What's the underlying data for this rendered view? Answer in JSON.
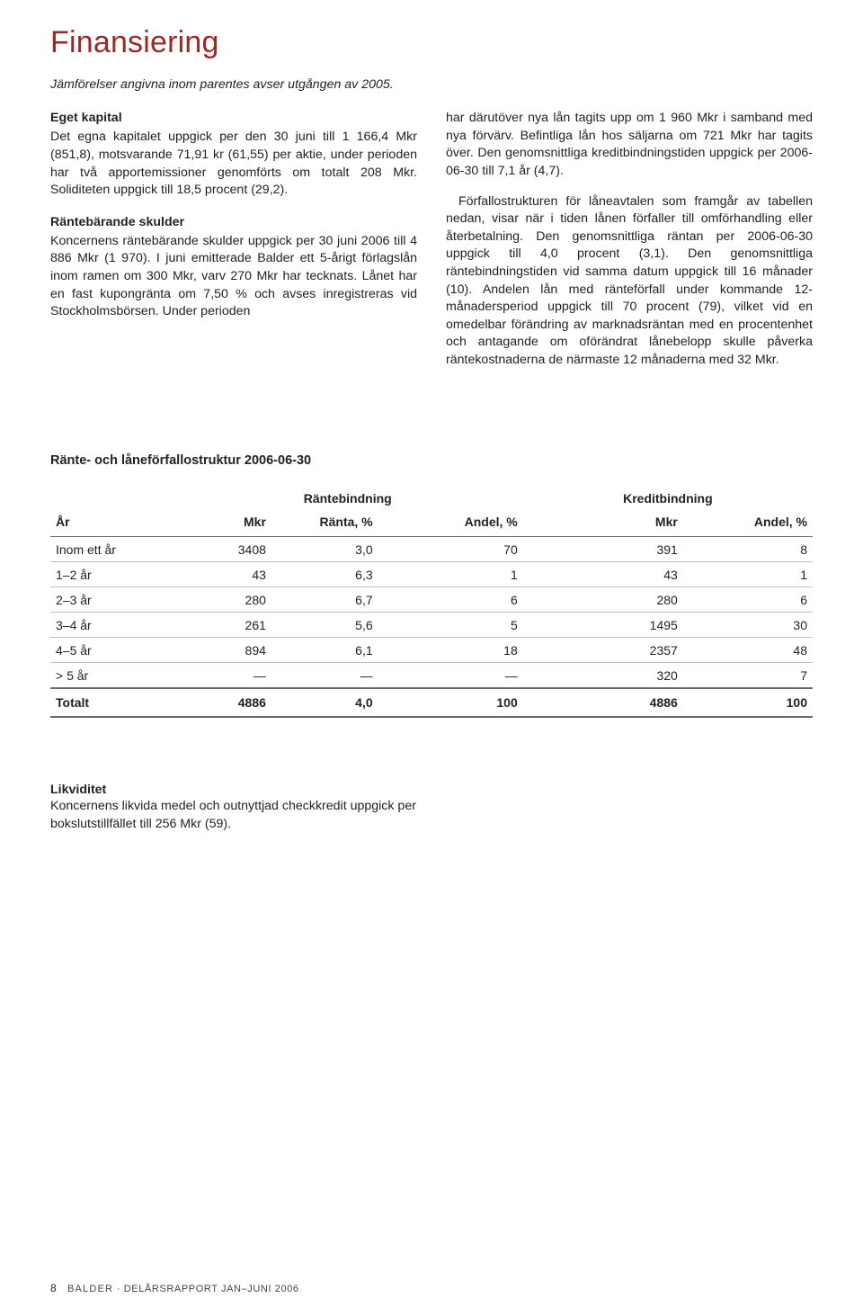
{
  "title": "Finansiering",
  "intro_italic": "Jämförelser angivna inom parentes avser utgången av 2005.",
  "left": {
    "s1_head": "Eget kapital",
    "s1_body": "Det egna kapitalet uppgick per den 30 juni till 1 166,4 Mkr (851,8), motsvarande 71,91 kr (61,55) per aktie, under perioden har två apportemissioner genomförts om totalt 208 Mkr. Soliditeten uppgick till 18,5 procent (29,2).",
    "s2_head": "Räntebärande skulder",
    "s2_body": "Koncernens räntebärande skulder uppgick per 30 juni 2006 till 4 886 Mkr (1 970). I juni emitterade Balder ett 5-årigt förlagslån inom ramen om 300 Mkr, varv 270 Mkr har tecknats. Lånet har en fast kupongränta om 7,50 % och avses inregistreras vid Stockholmsbörsen. Under perioden"
  },
  "right": {
    "p1": "har därutöver nya lån tagits upp om 1 960 Mkr i samband med nya förvärv. Befintliga lån hos säljarna om 721 Mkr har tagits över. Den genomsnittliga kreditbindningstiden uppgick per 2006-06-30 till 7,1 år (4,7).",
    "p2": "Förfallostrukturen för låneavtalen som framgår av tabellen nedan, visar när i tiden lånen förfaller till omförhandling eller återbetalning. Den genomsnittliga räntan per 2006-06-30 uppgick till 4,0 procent (3,1). Den genomsnittliga räntebindningstiden vid samma datum uppgick till 16 månader (10). Andelen lån med ränteförfall under kommande 12-månadersperiod uppgick till 70 procent (79), vilket vid en omedelbar förändring av marknadsräntan med en procentenhet och antagande om oförändrat lånebelopp skulle påverka räntekostnaderna de närmaste 12 månaderna med 32 Mkr."
  },
  "table": {
    "title": "Ränte- och låneförfallostruktur 2006-06-30",
    "group1": "Räntebindning",
    "group2": "Kreditbindning",
    "headers": {
      "ar": "År",
      "mkr": "Mkr",
      "ranta": "Ränta, %",
      "andel": "Andel, %"
    },
    "rows": [
      {
        "ar": "Inom ett år",
        "mkr1": "3408",
        "ranta": "3,0",
        "andel1": "70",
        "mkr2": "391",
        "andel2": "8"
      },
      {
        "ar": "1–2 år",
        "mkr1": "43",
        "ranta": "6,3",
        "andel1": "1",
        "mkr2": "43",
        "andel2": "1"
      },
      {
        "ar": "2–3 år",
        "mkr1": "280",
        "ranta": "6,7",
        "andel1": "6",
        "mkr2": "280",
        "andel2": "6"
      },
      {
        "ar": "3–4 år",
        "mkr1": "261",
        "ranta": "5,6",
        "andel1": "5",
        "mkr2": "1495",
        "andel2": "30"
      },
      {
        "ar": "4–5 år",
        "mkr1": "894",
        "ranta": "6,1",
        "andel1": "18",
        "mkr2": "2357",
        "andel2": "48"
      },
      {
        "ar": "> 5 år",
        "mkr1": "—",
        "ranta": "—",
        "andel1": "—",
        "mkr2": "320",
        "andel2": "7"
      }
    ],
    "total": {
      "label": "Totalt",
      "mkr1": "4886",
      "ranta": "4,0",
      "andel1": "100",
      "mkr2": "4886",
      "andel2": "100"
    }
  },
  "likviditet": {
    "head": "Likviditet",
    "body": "Koncernens likvida medel och outnyttjad checkkredit uppgick per bokslutstillfället till 256 Mkr (59)."
  },
  "footer": {
    "page": "8",
    "brand": "BALDER",
    "sep": "·",
    "doc": "DELÅRSRAPPORT JAN–JUNI 2006"
  }
}
